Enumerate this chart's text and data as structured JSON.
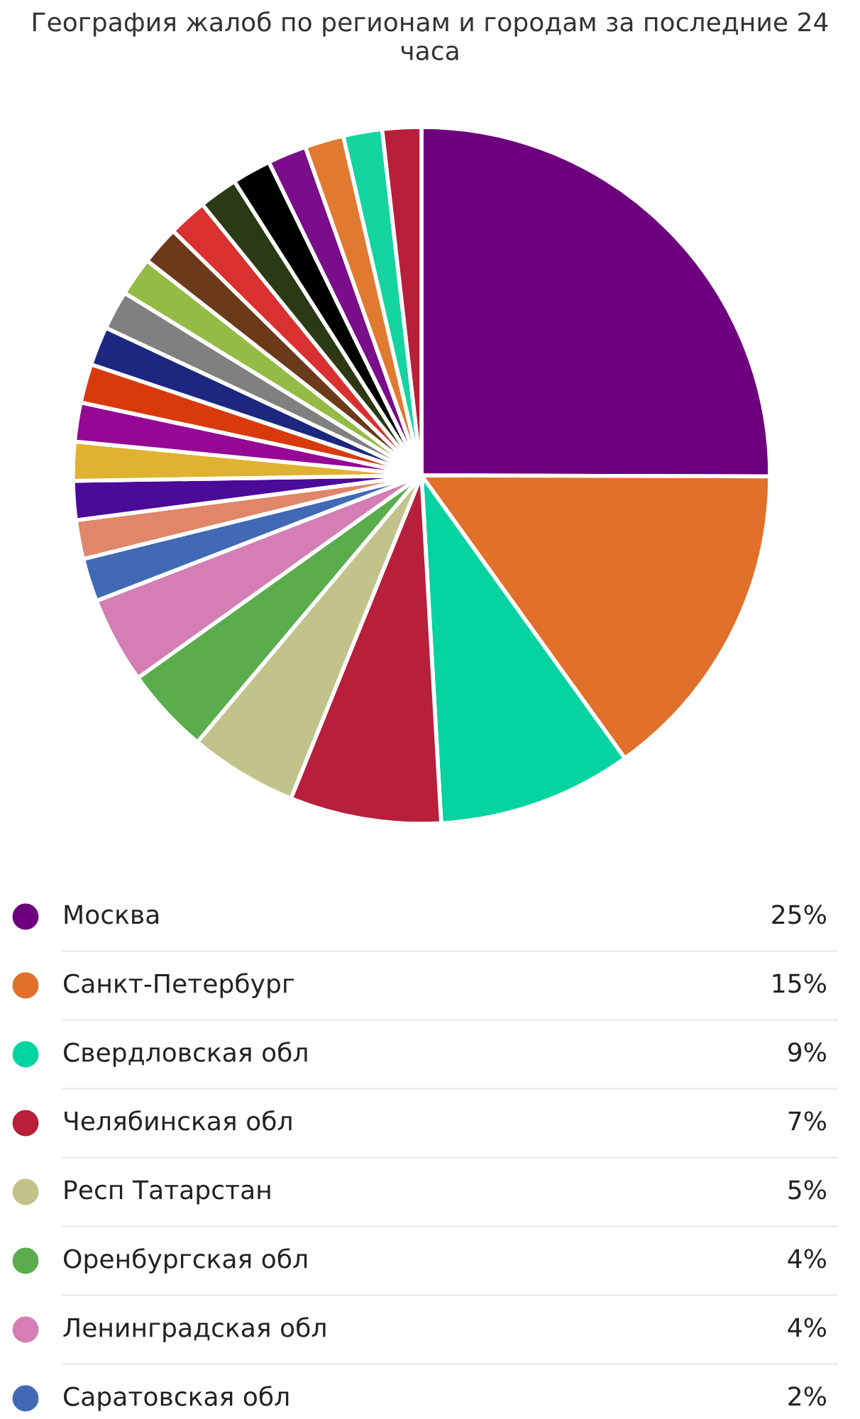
{
  "chart_data": {
    "type": "pie",
    "title": "География жалоб по регионам и городам за последние 24 часа",
    "categories": [
      "Москва",
      "Санкт-Петербург",
      "Свердловская обл",
      "Челябинская обл",
      "Респ Татарстан",
      "Оренбургская обл",
      "Ленинградская обл",
      "Саратовская обл",
      null,
      null,
      null,
      null,
      null,
      null,
      null,
      null,
      null,
      null,
      null,
      null,
      null,
      null,
      null,
      null
    ],
    "values": [
      25,
      15,
      9,
      7,
      5,
      4,
      4,
      2,
      1.8,
      1.8,
      1.8,
      1.8,
      1.8,
      1.8,
      1.8,
      1.8,
      1.8,
      1.8,
      1.8,
      1.8,
      1.8,
      1.8,
      1.8,
      1.8
    ],
    "value_labels": [
      "25%",
      "15%",
      "9%",
      "7%",
      "5%",
      "4%",
      "4%",
      "2%",
      null,
      null,
      null,
      null,
      null,
      null,
      null,
      null,
      null,
      null,
      null,
      null,
      null,
      null,
      null,
      null
    ],
    "colors": [
      "#6e007f",
      "#e0702a",
      "#05d4a0",
      "#b71f3a",
      "#c2c38a",
      "#5aac4d",
      "#d57db5",
      "#4169b5",
      "#e0866a",
      "#4b0a98",
      "#e0b232",
      "#950896",
      "#d93a0c",
      "#1c2780",
      "#808080",
      "#95bb47",
      "#6b3a1a",
      "#d93030",
      "#2b3a14",
      "#000000",
      "#7a0d8a",
      "#e07a30",
      "#14d4a0",
      "#b81f3a"
    ],
    "legend": "bottom"
  }
}
